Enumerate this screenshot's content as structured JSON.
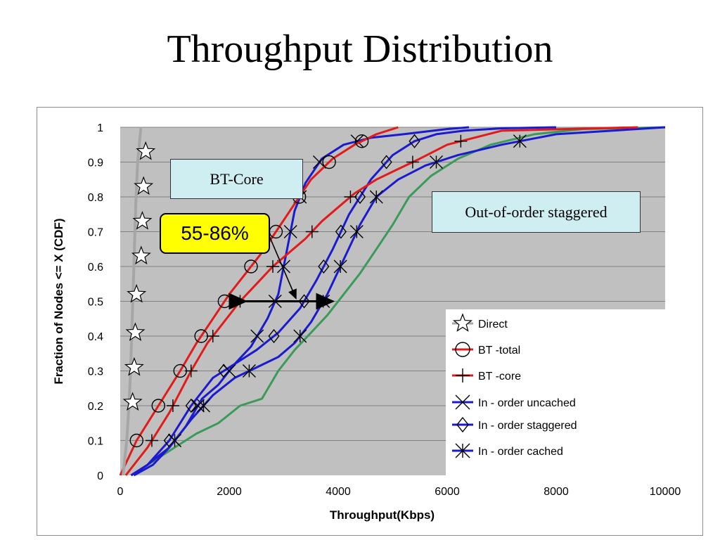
{
  "slide_title": "Throughput Distribution",
  "annotations": {
    "bt_core_box": "BT-Core",
    "out_of_order_box": "Out-of-order staggered",
    "percent_box": "55-86%"
  },
  "colors": {
    "plot_bg": "#c0c0c0",
    "gridline": "#808080",
    "direct": "#a6a6a6",
    "bt": "#e21a1a",
    "in_order": "#1a1ad0",
    "out_of_order": "#3a9a5a",
    "callout_cyan": "#cfeef2",
    "callout_yellow": "#ffff00"
  },
  "chart_data": {
    "type": "line",
    "title": "",
    "xlabel": "Throughput(Kbps)",
    "ylabel": "Fraction of Nodes <= X (CDF)",
    "xlim": [
      0,
      10000
    ],
    "ylim": [
      0,
      1
    ],
    "xticks": [
      "0",
      "2000",
      "4000",
      "6000",
      "8000",
      "10000"
    ],
    "yticks": [
      "0",
      "0.1",
      "0.2",
      "0.3",
      "0.4",
      "0.5",
      "0.6",
      "0.7",
      "0.8",
      "0.9",
      "1"
    ],
    "grid": "horizontal",
    "legend_position": "bottom-right",
    "series": [
      {
        "name": "Direct",
        "marker": "star",
        "color": "#a6a6a6",
        "x": [
          50,
          120,
          160,
          190,
          210,
          230,
          250,
          270,
          290,
          320,
          380
        ],
        "y": [
          0,
          0.1,
          0.2,
          0.3,
          0.4,
          0.5,
          0.6,
          0.7,
          0.8,
          0.9,
          1
        ]
      },
      {
        "name": "BT -total",
        "marker": "circle",
        "color": "#e21a1a",
        "x": [
          0,
          300,
          500,
          700,
          900,
          1100,
          1400,
          1700,
          2000,
          2300,
          2600,
          2900,
          3200,
          3500,
          3900,
          4300,
          4700,
          5100
        ],
        "y": [
          0,
          0.1,
          0.15,
          0.2,
          0.25,
          0.3,
          0.38,
          0.45,
          0.52,
          0.58,
          0.64,
          0.71,
          0.78,
          0.85,
          0.91,
          0.95,
          0.98,
          1
        ]
      },
      {
        "name": "BT -core",
        "marker": "plus",
        "color": "#e21a1a",
        "x": [
          100,
          500,
          900,
          1300,
          1600,
          1900,
          2200,
          2500,
          2800,
          3100,
          3400,
          3700,
          4000,
          4300,
          4700,
          5100,
          5500,
          6000,
          7000,
          9500
        ],
        "y": [
          0,
          0.08,
          0.18,
          0.3,
          0.38,
          0.44,
          0.5,
          0.55,
          0.6,
          0.64,
          0.68,
          0.73,
          0.77,
          0.81,
          0.85,
          0.88,
          0.91,
          0.95,
          0.99,
          1
        ]
      },
      {
        "name": "In - order uncached",
        "marker": "x",
        "color": "#1a1ad0",
        "x": [
          250,
          600,
          900,
          1200,
          1500,
          1800,
          2100,
          2400,
          2700,
          2900,
          3000,
          3100,
          3200,
          3400,
          3700,
          4100,
          4600,
          5200,
          6000,
          6400
        ],
        "y": [
          0,
          0.03,
          0.08,
          0.14,
          0.22,
          0.26,
          0.32,
          0.37,
          0.45,
          0.52,
          0.6,
          0.68,
          0.76,
          0.84,
          0.91,
          0.95,
          0.97,
          0.98,
          0.995,
          1
        ]
      },
      {
        "name": "In - order staggered",
        "marker": "diamond",
        "color": "#1a1ad0",
        "x": [
          200,
          500,
          900,
          1300,
          1700,
          2100,
          2500,
          2900,
          3300,
          3600,
          3900,
          4200,
          4600,
          5000,
          5400,
          5800,
          6300,
          7000,
          8000
        ],
        "y": [
          0,
          0.03,
          0.1,
          0.2,
          0.28,
          0.32,
          0.36,
          0.41,
          0.48,
          0.56,
          0.65,
          0.75,
          0.85,
          0.92,
          0.96,
          0.98,
          0.99,
          0.997,
          1
        ]
      },
      {
        "name": "In - order cached",
        "marker": "asterisk",
        "color": "#1a1ad0",
        "x": [
          200,
          500,
          900,
          1300,
          1700,
          2100,
          2500,
          2900,
          3200,
          3500,
          3800,
          4100,
          4400,
          4700,
          5100,
          5600,
          6200,
          7000,
          8000,
          10000
        ],
        "y": [
          0,
          0.03,
          0.08,
          0.16,
          0.23,
          0.28,
          0.31,
          0.34,
          0.38,
          0.44,
          0.52,
          0.62,
          0.72,
          0.8,
          0.85,
          0.89,
          0.92,
          0.95,
          0.98,
          1
        ]
      },
      {
        "name": "Out-of-order staggered",
        "marker": "none",
        "color": "#3a9a5a",
        "x": [
          200,
          600,
          1000,
          1400,
          1800,
          2200,
          2600,
          2900,
          3200,
          3500,
          3800,
          4100,
          4400,
          4700,
          5000,
          5300,
          5700,
          6200,
          6800,
          7600,
          8500,
          10000
        ],
        "y": [
          0,
          0.04,
          0.08,
          0.12,
          0.15,
          0.2,
          0.22,
          0.3,
          0.36,
          0.41,
          0.46,
          0.52,
          0.58,
          0.65,
          0.72,
          0.8,
          0.86,
          0.91,
          0.95,
          0.98,
          0.995,
          1
        ]
      }
    ],
    "double_arrow": {
      "x_from": 2300,
      "x_to": 3900,
      "y": 0.5
    },
    "pointer_arrow": {
      "from_box": "percent_box",
      "to": {
        "x": 3200,
        "y": 0.5
      }
    }
  }
}
